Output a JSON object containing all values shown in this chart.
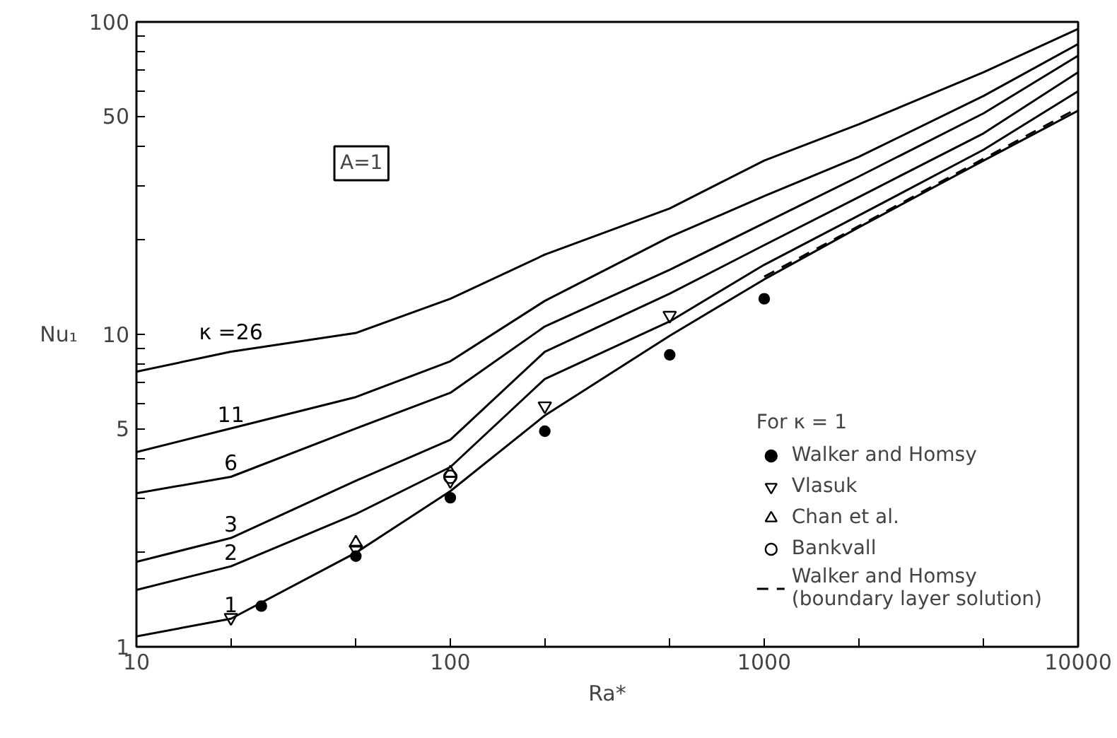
{
  "chart_data": {
    "type": "line",
    "xlabel": "Ra*",
    "ylabel": "Nu₁",
    "log": "xy",
    "grid": false,
    "legend": "bottom right",
    "legend_title": "For κ = 1",
    "xlim": [
      10,
      10000
    ],
    "ylim": [
      1,
      100
    ],
    "xticks": [
      10,
      {
        "value": 20,
        "label": null
      },
      {
        "value": 50,
        "label": null
      },
      100,
      {
        "value": 200,
        "label": null
      },
      {
        "value": 500,
        "label": null
      },
      1000,
      {
        "value": 2000,
        "label": null
      },
      {
        "value": 5000,
        "label": null
      },
      10000
    ],
    "yticks": [
      1,
      {
        "value": 2,
        "label": null
      },
      {
        "value": 3,
        "label": null
      },
      {
        "value": 4,
        "label": null
      },
      5,
      {
        "value": 6,
        "label": null
      },
      {
        "value": 7,
        "label": null
      },
      {
        "value": 8,
        "label": null
      },
      {
        "value": 9,
        "label": null
      },
      10,
      {
        "value": 20,
        "label": null
      },
      {
        "value": 30,
        "label": null
      },
      {
        "value": 40,
        "label": null
      },
      50,
      {
        "value": 60,
        "label": null
      },
      {
        "value": 70,
        "label": null
      },
      {
        "value": 80,
        "label": null
      },
      {
        "value": 90,
        "label": null
      },
      100
    ],
    "annotations": [
      "A=1"
    ],
    "x": [
      10,
      20,
      50,
      100,
      200,
      500,
      1000,
      2000,
      5000,
      10000
    ],
    "series": [
      {
        "name": "κ =26",
        "color": "#000000",
        "line_style": "solid",
        "values": [
          7.6,
          8.8,
          10.1,
          13,
          18,
          25.3,
          36,
          47,
          69,
          95
        ]
      },
      {
        "name": "11",
        "color": "#000000",
        "line_style": "solid",
        "values": [
          4.2,
          5.0,
          6.3,
          8.2,
          12.8,
          20.5,
          27.7,
          37,
          58,
          85
        ]
      },
      {
        "name": "6",
        "color": "#000000",
        "line_style": "solid",
        "values": [
          3.1,
          3.5,
          5.0,
          6.5,
          10.6,
          16.1,
          22.7,
          32,
          51,
          78
        ]
      },
      {
        "name": "3",
        "color": "#000000",
        "line_style": "solid",
        "values": [
          1.87,
          2.23,
          3.4,
          4.6,
          8.8,
          13.5,
          19.3,
          27.5,
          44,
          69
        ]
      },
      {
        "name": "2",
        "color": "#000000",
        "line_style": "solid",
        "values": [
          1.52,
          1.81,
          2.66,
          3.76,
          7.2,
          11,
          16.7,
          24,
          39,
          60
        ]
      },
      {
        "name": "1",
        "color": "#000000",
        "line_style": "solid",
        "values": [
          1.08,
          1.23,
          2.0,
          3.15,
          5.5,
          9.9,
          15,
          22,
          36,
          52
        ]
      },
      {
        "name": "Walker and Homsy",
        "type": "scatter",
        "marker": "dot",
        "color": "#000000",
        "x": [
          25,
          50,
          100,
          200,
          500,
          1000
        ],
        "values": [
          1.35,
          1.95,
          3.0,
          4.9,
          8.6,
          13
        ]
      },
      {
        "name": "Vlasuk",
        "type": "scatter",
        "color": "#000000",
        "x": [
          20,
          50,
          100,
          200,
          500
        ],
        "values": [
          1.24,
          2.05,
          3.4,
          5.9,
          11.5
        ]
      },
      {
        "name": "Chan et al.",
        "type": "scatter",
        "marker": "triangle",
        "color": "#000000",
        "x": [
          50,
          100
        ],
        "values": [
          2.15,
          3.6
        ]
      },
      {
        "name": "Bankvall",
        "type": "scatter",
        "marker": "circle",
        "color": "#000000",
        "x": [
          100
        ],
        "values": [
          3.5
        ]
      },
      {
        "name": "Walker and Homsy\n(boundary layer solution)",
        "color": "#000000",
        "line_style": "dashed",
        "x": [
          1000,
          2000,
          5000,
          10000
        ],
        "values": [
          15.3,
          22.2,
          36.5,
          53
        ]
      }
    ]
  }
}
